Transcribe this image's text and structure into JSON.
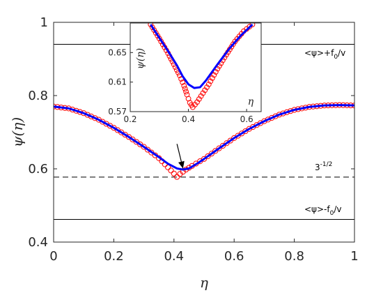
{
  "chart_data": [
    {
      "type": "line",
      "xlabel": "η",
      "ylabel": "ψ(η)",
      "xlim": [
        0,
        1
      ],
      "ylim": [
        0.4,
        1.0
      ],
      "xticks": [
        "0",
        "0.2",
        "0.4",
        "0.6",
        "0.8",
        "1"
      ],
      "yticks": [
        "0.4",
        "0.6",
        "0.8",
        "1"
      ],
      "grid": false,
      "reference_lines": [
        {
          "y": 0.94,
          "style": "solid",
          "label": "<ψ>+f0/v",
          "label_main": "<ψ>+f",
          "label_sub": "0",
          "label_tail": "/v"
        },
        {
          "y": 0.5774,
          "style": "dashed",
          "label": "3-1/2",
          "label_main": "3",
          "label_sup": "-1/2"
        },
        {
          "y": 0.462,
          "style": "solid",
          "label": "<ψ>-f0/v",
          "label_main": "<ψ>-f",
          "label_sub": "0",
          "label_tail": "/v"
        }
      ],
      "series": [
        {
          "style": "blue-line",
          "color": "#0000ff",
          "x": [
            0.0,
            0.05,
            0.1,
            0.15,
            0.2,
            0.25,
            0.3,
            0.35,
            0.38,
            0.41,
            0.43,
            0.45,
            0.48,
            0.5,
            0.55,
            0.6,
            0.65,
            0.7,
            0.75,
            0.8,
            0.85,
            0.9,
            0.95,
            1.0
          ],
          "y": [
            0.77,
            0.765,
            0.752,
            0.734,
            0.712,
            0.687,
            0.66,
            0.632,
            0.614,
            0.601,
            0.598,
            0.601,
            0.616,
            0.627,
            0.656,
            0.684,
            0.709,
            0.73,
            0.748,
            0.761,
            0.769,
            0.773,
            0.774,
            0.773
          ]
        },
        {
          "style": "red-circles",
          "color": "#ff0000",
          "x": [
            0.0,
            0.05,
            0.1,
            0.15,
            0.2,
            0.25,
            0.3,
            0.35,
            0.38,
            0.4,
            0.41,
            0.42,
            0.44,
            0.46,
            0.5,
            0.55,
            0.6,
            0.65,
            0.7,
            0.75,
            0.8,
            0.85,
            0.9,
            0.95,
            1.0
          ],
          "y": [
            0.77,
            0.765,
            0.752,
            0.734,
            0.712,
            0.687,
            0.66,
            0.629,
            0.604,
            0.587,
            0.578,
            0.586,
            0.598,
            0.608,
            0.627,
            0.656,
            0.684,
            0.709,
            0.73,
            0.748,
            0.761,
            0.769,
            0.773,
            0.774,
            0.773
          ]
        }
      ],
      "annotations": [
        {
          "type": "arrow",
          "from": [
            0.41,
            0.668
          ],
          "to": [
            0.43,
            0.601
          ]
        }
      ]
    },
    {
      "type": "line",
      "role": "inset",
      "xlabel": "η",
      "ylabel": "ψ(η)",
      "xlim": [
        0.2,
        0.65
      ],
      "ylim": [
        0.57,
        0.69
      ],
      "xticks": [
        "0.2",
        "0.4",
        "0.6"
      ],
      "yticks": [
        "0.57",
        "0.61",
        "0.65"
      ],
      "series": [
        {
          "style": "blue-line",
          "color": "#0000ff",
          "x": [
            0.27,
            0.3,
            0.33,
            0.36,
            0.38,
            0.4,
            0.42,
            0.44,
            0.46,
            0.5,
            0.54,
            0.58,
            0.62
          ],
          "y": [
            0.688,
            0.67,
            0.652,
            0.633,
            0.618,
            0.607,
            0.602,
            0.603,
            0.612,
            0.634,
            0.655,
            0.673,
            0.688
          ]
        },
        {
          "style": "red-circles",
          "color": "#ff0000",
          "x": [
            0.27,
            0.3,
            0.33,
            0.35,
            0.37,
            0.385,
            0.395,
            0.405,
            0.415,
            0.43,
            0.45,
            0.47,
            0.5,
            0.53,
            0.56,
            0.59,
            0.62
          ],
          "y": [
            0.688,
            0.669,
            0.649,
            0.634,
            0.619,
            0.605,
            0.593,
            0.582,
            0.576,
            0.583,
            0.595,
            0.607,
            0.628,
            0.647,
            0.665,
            0.679,
            0.688
          ]
        }
      ]
    }
  ]
}
